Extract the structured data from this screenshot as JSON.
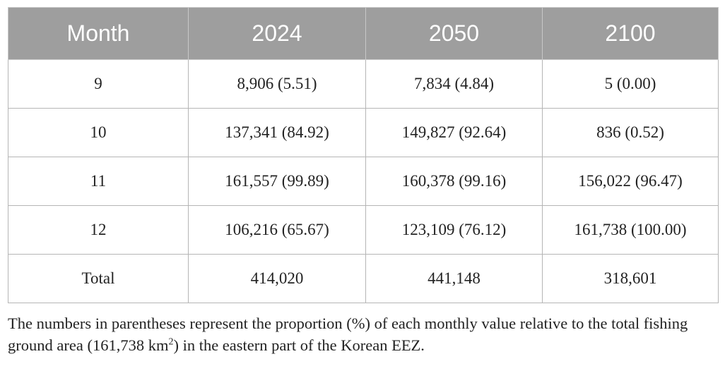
{
  "table": {
    "header": [
      "Month",
      "2024",
      "2050",
      "2100"
    ],
    "rows": [
      [
        "9",
        "8,906 (5.51)",
        "7,834 (4.84)",
        "5 (0.00)"
      ],
      [
        "10",
        "137,341 (84.92)",
        "149,827 (92.64)",
        "836 (0.52)"
      ],
      [
        "11",
        "161,557 (99.89)",
        "160,378 (99.16)",
        "156,022 (96.47)"
      ],
      [
        "12",
        "106,216 (65.67)",
        "123,109 (76.12)",
        "161,738 (100.00)"
      ],
      [
        "Total",
        "414,020",
        "441,148",
        "318,601"
      ]
    ]
  },
  "note": {
    "before": "The numbers in parentheses represent the proportion (%) of each monthly value relative to the total fishing ground area (161,738 km",
    "sup": "2",
    "after": ") in the eastern part of the Korean EEZ."
  }
}
